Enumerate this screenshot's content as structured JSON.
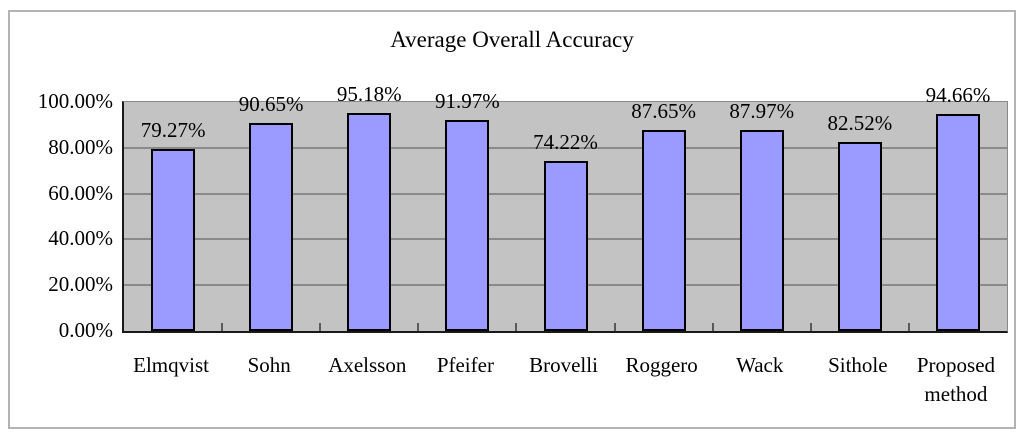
{
  "chart_data": {
    "type": "bar",
    "title": "Average Overall Accuracy",
    "categories": [
      "Elmqvist",
      "Sohn",
      "Axelsson",
      "Pfeifer",
      "Brovelli",
      "Roggero",
      "Wack",
      "Sithole",
      "Proposed method"
    ],
    "values": [
      79.27,
      90.65,
      95.18,
      91.97,
      74.22,
      87.65,
      87.97,
      82.52,
      94.66
    ],
    "value_labels": [
      "79.27%",
      "90.65%",
      "95.18%",
      "91.97%",
      "74.22%",
      "87.65%",
      "87.97%",
      "82.52%",
      "94.66%"
    ],
    "y_ticks": [
      "0.00%",
      "20.00%",
      "40.00%",
      "60.00%",
      "80.00%",
      "100.00%"
    ],
    "y_tick_values": [
      0,
      20,
      40,
      60,
      80,
      100
    ],
    "ylim": [
      0,
      100
    ],
    "xlabel": "",
    "ylabel": "",
    "legend": "none",
    "grid": "horizontal",
    "colors": {
      "bar_fill": "#9A9AFF",
      "bar_border": "#000000",
      "plot_background": "#C3C3C3",
      "gridline": "#8A8A8A",
      "axis_line": "#1A1A1A",
      "frame_border": "#B3B3B3",
      "text": "#000000",
      "page_background": "#FFFFFF"
    }
  }
}
